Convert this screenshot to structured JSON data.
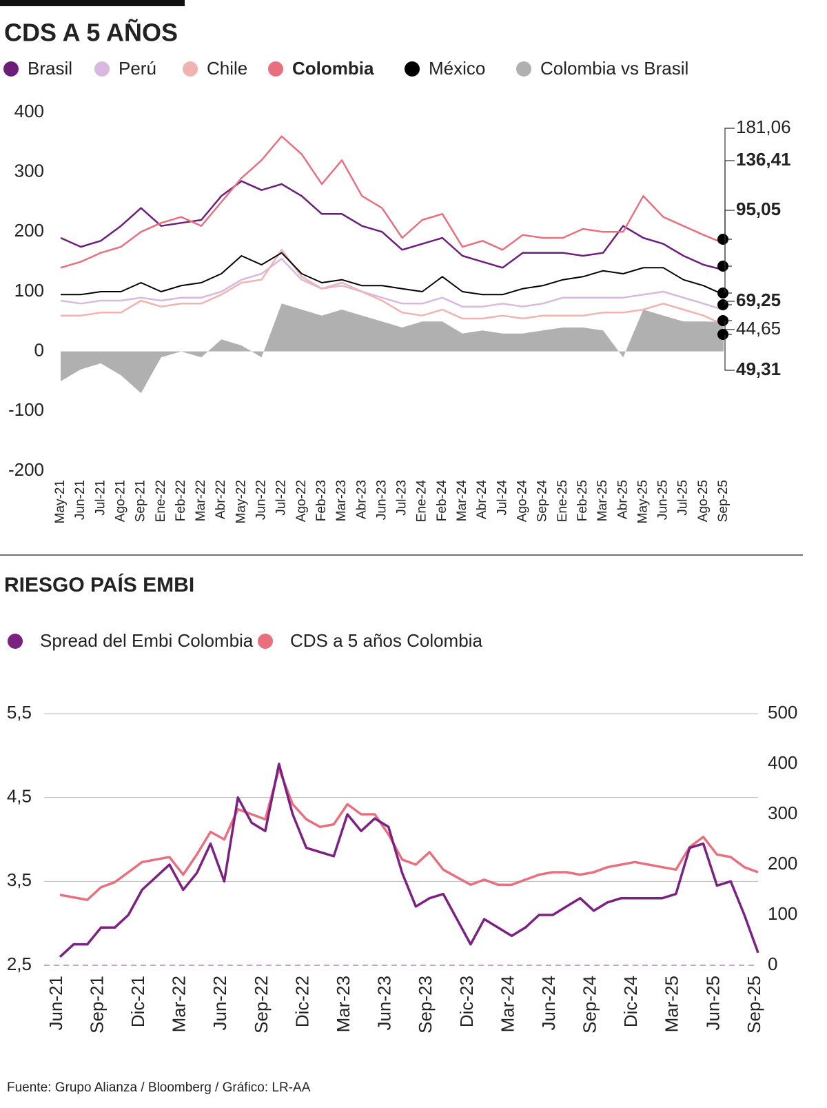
{
  "chart_data": [
    {
      "type": "line",
      "title": "CDS A 5 AÑOS",
      "categories": [
        "May-21",
        "Jun-21",
        "Jul-21",
        "Ago-21",
        "Sep-21",
        "Ene-22",
        "Feb-22",
        "Mar-22",
        "Abr-22",
        "May-22",
        "Jun-22",
        "Jul-22",
        "Ago-22",
        "Feb-23",
        "Mar-23",
        "Abr-23",
        "Jun-23",
        "Jul-23",
        "Ene-24",
        "Feb-24",
        "Mar-24",
        "Abr-24",
        "Jul-24",
        "Ago-24",
        "Sep-24",
        "Ene-25",
        "Feb-25",
        "Mar-25",
        "Abr-25",
        "May-25",
        "Jun-25",
        "Jul-25",
        "Ago-25",
        "Sep-25"
      ],
      "ylim": [
        -200,
        400
      ],
      "yticks": [
        -200,
        -100,
        0,
        100,
        200,
        300,
        400
      ],
      "series": [
        {
          "name": "Brasil",
          "color": "#6b1f7a",
          "values": [
            190,
            175,
            185,
            210,
            240,
            210,
            215,
            220,
            260,
            285,
            270,
            280,
            260,
            230,
            230,
            210,
            200,
            170,
            180,
            190,
            160,
            150,
            140,
            165,
            165,
            165,
            160,
            165,
            210,
            190,
            180,
            160,
            145,
            136.41
          ],
          "value_labels": [
            null,
            null,
            null,
            null,
            null,
            null,
            null,
            null,
            null,
            null,
            null,
            null,
            null,
            null,
            null,
            null,
            null,
            null,
            null,
            null,
            null,
            null,
            null,
            null,
            null,
            null,
            null,
            null,
            null,
            null,
            null,
            null,
            null,
            "136,41"
          ]
        },
        {
          "name": "Perú",
          "color": "#d9b8e0",
          "values": [
            85,
            80,
            85,
            85,
            90,
            85,
            90,
            90,
            100,
            120,
            130,
            155,
            120,
            105,
            110,
            100,
            90,
            80,
            80,
            90,
            75,
            75,
            80,
            75,
            80,
            90,
            90,
            90,
            90,
            95,
            100,
            90,
            80,
            69.25
          ],
          "value_labels": [
            null,
            null,
            null,
            null,
            null,
            null,
            null,
            null,
            null,
            null,
            null,
            null,
            null,
            null,
            null,
            null,
            null,
            null,
            null,
            null,
            null,
            null,
            null,
            null,
            null,
            null,
            null,
            null,
            null,
            null,
            null,
            null,
            null,
            "69,25"
          ]
        },
        {
          "name": "Chile",
          "color": "#f0b3b0",
          "values": [
            60,
            60,
            65,
            65,
            85,
            75,
            80,
            80,
            95,
            115,
            120,
            170,
            125,
            105,
            115,
            100,
            85,
            65,
            60,
            70,
            55,
            55,
            60,
            55,
            60,
            60,
            60,
            65,
            65,
            70,
            80,
            70,
            60,
            44.65
          ],
          "value_labels": [
            null,
            null,
            null,
            null,
            null,
            null,
            null,
            null,
            null,
            null,
            null,
            null,
            null,
            null,
            null,
            null,
            null,
            null,
            null,
            null,
            null,
            null,
            null,
            null,
            null,
            null,
            null,
            null,
            null,
            null,
            null,
            null,
            null,
            "44,65"
          ]
        },
        {
          "name": "Colombia",
          "color": "#e8707e",
          "values": [
            140,
            150,
            165,
            175,
            200,
            215,
            225,
            210,
            250,
            290,
            320,
            360,
            330,
            280,
            320,
            260,
            240,
            190,
            220,
            230,
            175,
            185,
            170,
            195,
            190,
            190,
            205,
            200,
            200,
            260,
            225,
            210,
            195,
            181.06
          ],
          "value_labels": [
            null,
            null,
            null,
            null,
            null,
            null,
            null,
            null,
            null,
            null,
            null,
            null,
            null,
            null,
            null,
            null,
            null,
            null,
            null,
            null,
            null,
            null,
            null,
            null,
            null,
            null,
            null,
            null,
            null,
            null,
            null,
            null,
            null,
            "181,06"
          ]
        },
        {
          "name": "México",
          "color": "#000000",
          "values": [
            95,
            95,
            100,
            100,
            115,
            100,
            110,
            115,
            130,
            160,
            145,
            165,
            130,
            115,
            120,
            110,
            110,
            105,
            100,
            125,
            100,
            95,
            95,
            105,
            110,
            120,
            125,
            135,
            130,
            140,
            140,
            120,
            110,
            95.05
          ],
          "value_labels": [
            null,
            null,
            null,
            null,
            null,
            null,
            null,
            null,
            null,
            null,
            null,
            null,
            null,
            null,
            null,
            null,
            null,
            null,
            null,
            null,
            null,
            null,
            null,
            null,
            null,
            null,
            null,
            null,
            null,
            null,
            null,
            null,
            null,
            "95,05"
          ]
        },
        {
          "name": "Colombia vs Brasil",
          "color": "#b0b0b0",
          "style": "area",
          "values": [
            -50,
            -30,
            -20,
            -40,
            -70,
            -10,
            0,
            -10,
            20,
            10,
            -10,
            80,
            70,
            60,
            70,
            60,
            50,
            40,
            50,
            50,
            30,
            35,
            30,
            30,
            35,
            40,
            40,
            35,
            -10,
            70,
            60,
            50,
            50,
            49.31
          ],
          "value_labels": [
            null,
            null,
            null,
            null,
            null,
            null,
            null,
            null,
            null,
            null,
            null,
            null,
            null,
            null,
            null,
            null,
            null,
            null,
            null,
            null,
            null,
            null,
            null,
            null,
            null,
            null,
            null,
            null,
            null,
            null,
            null,
            null,
            null,
            "49,31"
          ]
        }
      ]
    },
    {
      "type": "line",
      "title": "RIESGO PAÍS EMBI",
      "categories": [
        "Jun-21",
        null,
        null,
        "Sep-21",
        null,
        null,
        "Dic-21",
        null,
        null,
        "Mar-22",
        null,
        null,
        "Jun-22",
        null,
        null,
        "Sep-22",
        null,
        null,
        "Dic-22",
        null,
        null,
        "Mar-23",
        null,
        null,
        "Jun-23",
        null,
        null,
        "Sep-23",
        null,
        null,
        "Dic-23",
        null,
        null,
        "Mar-24",
        null,
        null,
        "Jun-24",
        null,
        null,
        "Sep-24",
        null,
        null,
        "Dic-24",
        null,
        null,
        "Mar-25",
        null,
        null,
        "Jun-25",
        null,
        null,
        "Sep-25"
      ],
      "ylim": [
        2.5,
        5.5
      ],
      "yticks": [
        {
          "value": 2.5,
          "label": "2,5"
        },
        {
          "value": 3.5,
          "label": "3,5"
        },
        {
          "value": 4.5,
          "label": "4,5"
        },
        {
          "value": 5.5,
          "label": "5,5"
        }
      ],
      "y2lim": [
        0,
        500
      ],
      "y2ticks": [
        0,
        100,
        200,
        300,
        400,
        500
      ],
      "series": [
        {
          "name": "Spread del Embi Colombia",
          "color": "#7b2182",
          "values": [
            2.6,
            2.75,
            2.75,
            2.95,
            2.95,
            3.1,
            3.4,
            3.55,
            3.7,
            3.4,
            3.6,
            3.95,
            3.5,
            4.5,
            4.2,
            4.1,
            4.9,
            4.3,
            3.9,
            3.85,
            3.8,
            4.3,
            4.1,
            4.25,
            4.15,
            3.6,
            3.2,
            3.3,
            3.35,
            3.05,
            2.75,
            3.05,
            2.95,
            2.85,
            2.95,
            3.1,
            3.1,
            3.2,
            3.3,
            3.15,
            3.25,
            3.3,
            3.3,
            3.3,
            3.3,
            3.35,
            3.9,
            3.95,
            3.45,
            3.5,
            3.1,
            2.65
          ]
        },
        {
          "name": "CDS a 5 años Colombia",
          "color": "#e8707e",
          "axis": "y2",
          "values": [
            140,
            135,
            130,
            155,
            165,
            185,
            205,
            210,
            215,
            180,
            220,
            265,
            250,
            310,
            300,
            290,
            390,
            320,
            290,
            275,
            280,
            320,
            300,
            300,
            260,
            210,
            200,
            225,
            190,
            175,
            160,
            170,
            160,
            160,
            170,
            180,
            185,
            185,
            180,
            185,
            195,
            200,
            205,
            200,
            195,
            190,
            235,
            255,
            220,
            215,
            195,
            185
          ]
        }
      ]
    }
  ],
  "source": "Fuente: Grupo Alianza / Bloomberg / Gráfico: LR-AA"
}
